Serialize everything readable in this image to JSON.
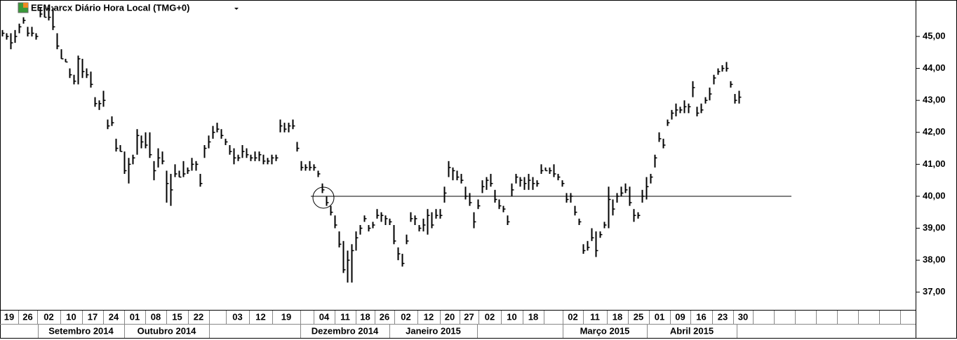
{
  "chart_data": {
    "type": "ohlc",
    "title": "EEM:arcx Diário Hora Local (TMG+0)",
    "color": "#000000",
    "high": [
      45.2,
      45.1,
      45.1,
      45.2,
      45.4,
      45.6,
      45.3,
      45.3,
      45.1,
      45.9,
      45.9,
      45.9,
      45.9,
      45.1,
      44.6,
      44.3,
      44.0,
      43.8,
      44.4,
      44.3,
      44.0,
      43.9,
      43.1,
      43.0,
      43.3,
      42.4,
      42.5,
      41.8,
      41.6,
      41.4,
      41.2,
      41.3,
      42.1,
      41.9,
      42.0,
      42.0,
      41.1,
      41.5,
      41.4,
      40.8,
      40.7,
      41.0,
      40.8,
      41.1,
      40.9,
      41.2,
      41.1,
      40.7,
      41.6,
      41.9,
      42.2,
      42.3,
      42.1,
      41.8,
      41.6,
      41.5,
      41.3,
      41.6,
      41.5,
      41.3,
      41.4,
      41.4,
      41.3,
      41.2,
      41.3,
      41.3,
      42.4,
      42.3,
      42.3,
      42.4,
      41.7,
      41.1,
      41.0,
      41.1,
      41.0,
      40.8,
      40.4,
      40.0,
      39.7,
      39.4,
      38.9,
      38.6,
      38.3,
      38.5,
      38.9,
      39.1,
      39.4,
      39.1,
      39.2,
      39.6,
      39.5,
      39.4,
      39.3,
      39.1,
      38.4,
      38.2,
      38.8,
      39.5,
      39.4,
      39.1,
      39.3,
      39.6,
      39.5,
      39.6,
      39.6,
      40.3,
      41.1,
      40.9,
      40.8,
      40.7,
      40.3,
      40.1,
      39.5,
      39.9,
      40.5,
      40.6,
      40.7,
      40.2,
      39.9,
      39.7,
      39.4,
      40.4,
      40.7,
      40.6,
      40.6,
      40.7,
      40.6,
      40.5,
      41.0,
      40.9,
      40.9,
      41.0,
      40.7,
      40.5,
      40.1,
      40.1,
      39.7,
      39.3,
      38.5,
      38.6,
      39.0,
      38.9,
      38.9,
      39.2,
      40.3,
      39.9,
      40.1,
      40.3,
      40.4,
      40.3,
      39.6,
      39.5,
      40.2,
      40.6,
      40.7,
      41.3,
      42.0,
      41.8,
      42.4,
      42.7,
      42.9,
      42.8,
      43.0,
      42.9,
      43.6,
      42.8,
      42.9,
      43.1,
      43.4,
      43.8,
      44.0,
      44.1,
      44.2,
      43.6,
      43.2,
      43.3
    ],
    "low": [
      45.0,
      44.9,
      44.6,
      44.8,
      45.1,
      45.4,
      45.0,
      45.0,
      44.9,
      45.6,
      45.6,
      45.5,
      45.2,
      44.6,
      44.3,
      44.2,
      43.7,
      43.5,
      43.5,
      43.7,
      43.7,
      43.4,
      42.8,
      42.7,
      42.8,
      42.1,
      42.2,
      41.4,
      41.4,
      40.7,
      40.4,
      41.0,
      41.3,
      41.5,
      41.5,
      41.2,
      40.5,
      40.9,
      41.0,
      39.8,
      39.7,
      40.6,
      40.6,
      40.6,
      40.7,
      40.8,
      40.8,
      40.3,
      41.2,
      41.5,
      41.8,
      42.0,
      41.8,
      41.6,
      41.3,
      41.0,
      41.1,
      41.2,
      41.2,
      41.1,
      41.1,
      41.1,
      41.0,
      41.0,
      41.0,
      41.1,
      42.0,
      42.0,
      42.0,
      42.1,
      41.4,
      40.8,
      40.8,
      40.8,
      40.8,
      40.6,
      40.1,
      39.7,
      39.4,
      39.0,
      38.4,
      37.6,
      37.3,
      37.3,
      38.3,
      38.8,
      39.2,
      38.9,
      39.0,
      39.3,
      39.2,
      39.1,
      39.1,
      38.5,
      38.0,
      37.8,
      38.5,
      39.2,
      39.1,
      38.9,
      38.9,
      38.8,
      39.0,
      39.3,
      39.3,
      39.8,
      40.6,
      40.5,
      40.5,
      40.4,
      39.9,
      39.7,
      39.0,
      39.6,
      40.1,
      40.2,
      40.3,
      39.8,
      39.6,
      39.5,
      39.1,
      40.0,
      40.4,
      40.3,
      40.2,
      40.2,
      40.2,
      40.3,
      40.7,
      40.8,
      40.7,
      40.6,
      40.5,
      40.3,
      39.8,
      39.8,
      39.4,
      39.1,
      38.2,
      38.3,
      38.6,
      38.1,
      38.7,
      39.0,
      39.0,
      39.4,
      39.8,
      40.0,
      40.1,
      39.7,
      39.2,
      39.3,
      39.8,
      39.9,
      40.4,
      40.9,
      41.7,
      41.5,
      42.2,
      42.4,
      42.5,
      42.6,
      42.6,
      42.6,
      43.1,
      42.5,
      42.6,
      42.9,
      43.0,
      43.5,
      43.8,
      43.9,
      43.9,
      43.4,
      42.9,
      42.9
    ],
    "close": [
      45.1,
      45.0,
      44.8,
      45.0,
      45.3,
      45.5,
      45.1,
      45.1,
      45.0,
      45.7,
      45.6,
      45.6,
      45.3,
      44.7,
      44.3,
      44.2,
      43.8,
      43.6,
      44.3,
      43.9,
      43.8,
      43.5,
      42.9,
      42.9,
      43.0,
      42.2,
      42.3,
      41.5,
      41.4,
      40.8,
      41.0,
      41.2,
      41.9,
      41.7,
      41.6,
      41.3,
      40.8,
      41.2,
      41.1,
      40.4,
      40.2,
      40.7,
      40.6,
      40.7,
      40.8,
      41.0,
      41.0,
      40.4,
      41.5,
      41.7,
      42.0,
      42.1,
      41.9,
      41.7,
      41.4,
      41.2,
      41.2,
      41.4,
      41.3,
      41.2,
      41.2,
      41.3,
      41.1,
      41.1,
      41.2,
      41.2,
      42.2,
      42.1,
      42.2,
      42.2,
      41.5,
      40.9,
      40.9,
      40.9,
      40.9,
      40.7,
      40.2,
      39.8,
      39.5,
      39.1,
      38.5,
      37.7,
      38.0,
      38.3,
      38.7,
      39.0,
      39.3,
      39.0,
      39.1,
      39.4,
      39.4,
      39.3,
      39.2,
      38.6,
      38.2,
      37.9,
      38.6,
      39.3,
      39.3,
      39.0,
      39.1,
      39.4,
      39.1,
      39.4,
      39.4,
      40.1,
      40.9,
      40.8,
      40.6,
      40.5,
      40.0,
      39.8,
      39.2,
      39.7,
      40.3,
      40.5,
      40.4,
      39.9,
      39.7,
      39.6,
      39.2,
      40.2,
      40.6,
      40.5,
      40.4,
      40.5,
      40.4,
      40.4,
      40.8,
      40.8,
      40.8,
      40.7,
      40.6,
      40.4,
      39.9,
      40.0,
      39.5,
      39.2,
      38.3,
      38.4,
      38.7,
      38.3,
      38.8,
      39.1,
      39.9,
      39.6,
      40.0,
      40.1,
      40.2,
      39.8,
      39.4,
      39.4,
      40.0,
      40.3,
      40.6,
      41.2,
      41.8,
      41.6,
      42.3,
      42.6,
      42.7,
      42.7,
      42.8,
      42.8,
      43.4,
      42.6,
      42.7,
      43.0,
      43.2,
      43.7,
      43.9,
      44.0,
      44.0,
      43.5,
      43.0,
      43.1
    ],
    "horizontal_line": 40,
    "ylim": [
      36.49,
      46.14
    ],
    "yticks": [
      {
        "value": 37,
        "label": "37,00"
      },
      {
        "value": 38,
        "label": "38,00"
      },
      {
        "value": 39,
        "label": "39,00"
      },
      {
        "value": 40,
        "label": "40,00"
      },
      {
        "value": 41,
        "label": "41,00"
      },
      {
        "value": 42,
        "label": "42,00"
      },
      {
        "value": 43,
        "label": "43,00"
      },
      {
        "value": 44,
        "label": "44,00"
      },
      {
        "value": 45,
        "label": "45,00"
      }
    ],
    "week_labels": [
      "19",
      "26",
      "02",
      "10",
      "17",
      "24",
      "01",
      "08",
      "15",
      "22",
      null,
      "03",
      "12",
      "19",
      null,
      "04",
      "11",
      "18",
      "26",
      "02",
      "12",
      "20",
      "27",
      "02",
      "10",
      "18",
      null,
      "02",
      "11",
      "18",
      "25",
      "01",
      "09",
      "16",
      "23",
      "30"
    ],
    "month_labels": [
      null,
      "Setembro 2014",
      "Outubro 2014",
      null,
      "Dezembro 2014",
      "Janeiro 2015",
      null,
      "Março 2015",
      "Abril 2015"
    ]
  }
}
